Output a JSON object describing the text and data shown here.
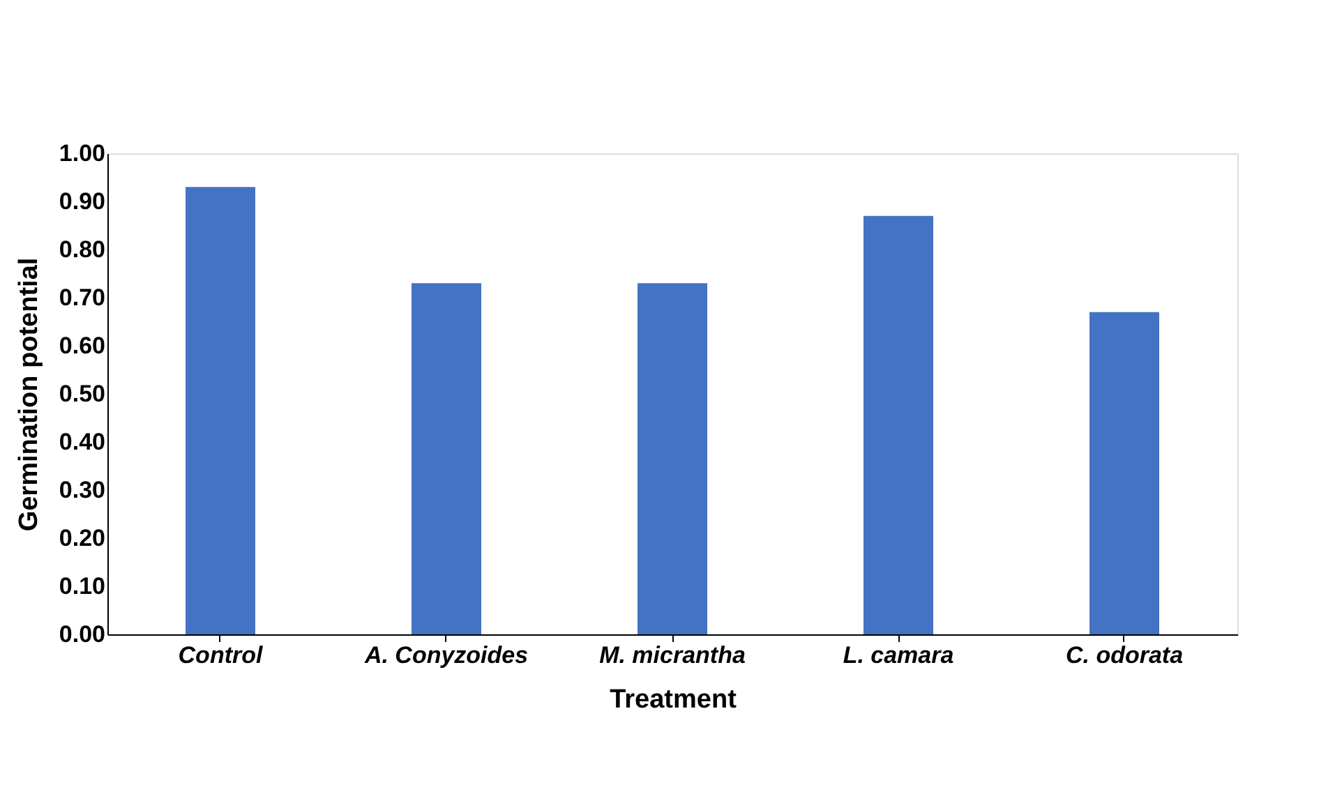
{
  "chart_data": {
    "type": "bar",
    "xlabel": "Treatment",
    "ylabel": "Germination potential",
    "categories": [
      "Control",
      "A. Conyzoides",
      "M. micrantha",
      "L. camara",
      "C. odorata"
    ],
    "values": [
      0.93,
      0.73,
      0.73,
      0.87,
      0.67
    ],
    "color": "#4472c4",
    "ylim": [
      0,
      1
    ],
    "yticks": [
      {
        "value": 0,
        "label": "0.00"
      },
      {
        "value": 0.1,
        "label": "0.10"
      },
      {
        "value": 0.2,
        "label": "0.20"
      },
      {
        "value": 0.3,
        "label": "0.30"
      },
      {
        "value": 0.4,
        "label": "0.40"
      },
      {
        "value": 0.5,
        "label": "0.50"
      },
      {
        "value": 0.6,
        "label": "0.60"
      },
      {
        "value": 0.7,
        "label": "0.70"
      },
      {
        "value": 0.8,
        "label": "0.80"
      },
      {
        "value": 0.9,
        "label": "0.90"
      },
      {
        "value": 1,
        "label": "1.00"
      }
    ],
    "grid": false
  }
}
